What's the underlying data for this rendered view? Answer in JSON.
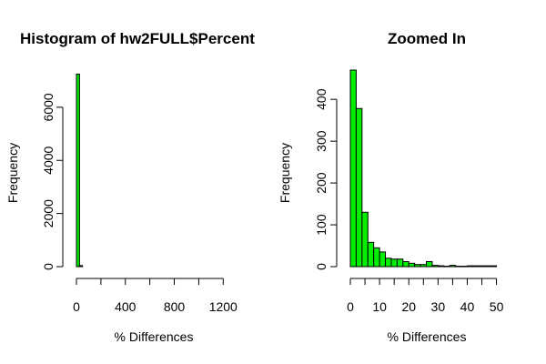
{
  "chart_data": [
    {
      "type": "bar",
      "title": "Histogram of hw2FULL$Percent",
      "xlabel": "% Differences",
      "ylabel": "Frequency",
      "xlim": [
        0,
        1250
      ],
      "ylim": [
        0,
        7400
      ],
      "bin_width": 25,
      "bins_start": [
        0,
        25
      ],
      "values": [
        7250,
        40
      ],
      "x_ticks": [
        0,
        400,
        800,
        1200
      ],
      "x_tick_labels": [
        "0",
        "400",
        "800",
        "1200"
      ],
      "y_ticks": [
        0,
        2000,
        4000,
        6000
      ],
      "y_tick_labels": [
        "0",
        "2000",
        "4000",
        "6000"
      ],
      "bar_color": "#00ee00"
    },
    {
      "type": "bar",
      "title": "Zoomed In",
      "xlabel": "% Differences",
      "ylabel": "Frequency",
      "xlim": [
        0,
        52
      ],
      "ylim": [
        0,
        470
      ],
      "bin_width": 2,
      "bins_start": [
        0,
        2,
        4,
        6,
        8,
        10,
        12,
        14,
        16,
        18,
        20,
        22,
        24,
        26,
        28,
        30,
        32,
        34,
        36,
        38,
        40,
        42,
        44,
        46,
        48
      ],
      "values": [
        470,
        378,
        130,
        58,
        45,
        35,
        20,
        18,
        18,
        12,
        8,
        5,
        5,
        12,
        3,
        2,
        1,
        3,
        1,
        1,
        2,
        2,
        2,
        2,
        2
      ],
      "x_ticks": [
        0,
        10,
        20,
        30,
        40,
        50
      ],
      "x_tick_labels": [
        "0",
        "10",
        "20",
        "30",
        "40",
        "50"
      ],
      "y_ticks": [
        0,
        100,
        200,
        300,
        400
      ],
      "y_tick_labels": [
        "0",
        "100",
        "200",
        "300",
        "400"
      ],
      "bar_color": "#00ee00"
    }
  ]
}
